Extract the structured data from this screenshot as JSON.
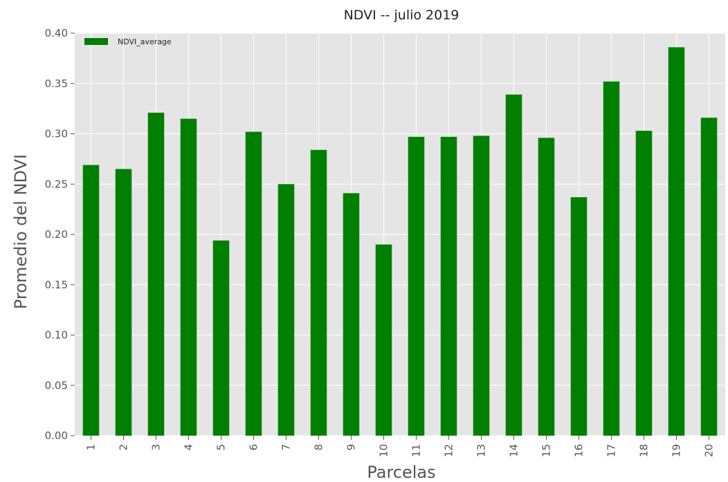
{
  "chart_data": {
    "type": "bar",
    "title": "NDVI -- julio 2019",
    "xlabel": "Parcelas",
    "ylabel": "Promedio del NDVI",
    "categories": [
      "1",
      "2",
      "3",
      "4",
      "5",
      "6",
      "7",
      "8",
      "9",
      "10",
      "11",
      "12",
      "13",
      "14",
      "15",
      "16",
      "17",
      "18",
      "19",
      "20"
    ],
    "series": [
      {
        "name": "NDVI_average",
        "values": [
          0.269,
          0.265,
          0.321,
          0.315,
          0.194,
          0.302,
          0.25,
          0.284,
          0.241,
          0.19,
          0.297,
          0.297,
          0.298,
          0.339,
          0.296,
          0.237,
          0.352,
          0.303,
          0.386,
          0.316
        ]
      }
    ],
    "ylim": [
      0,
      0.4
    ],
    "yticks": [
      "0.00",
      "0.05",
      "0.10",
      "0.15",
      "0.20",
      "0.25",
      "0.30",
      "0.35",
      "0.40"
    ],
    "grid": true,
    "legend_position": "top-left",
    "colors": {
      "bar": "#007f00",
      "plot_background": "#e5e5e5",
      "grid": "#ffffff"
    }
  }
}
